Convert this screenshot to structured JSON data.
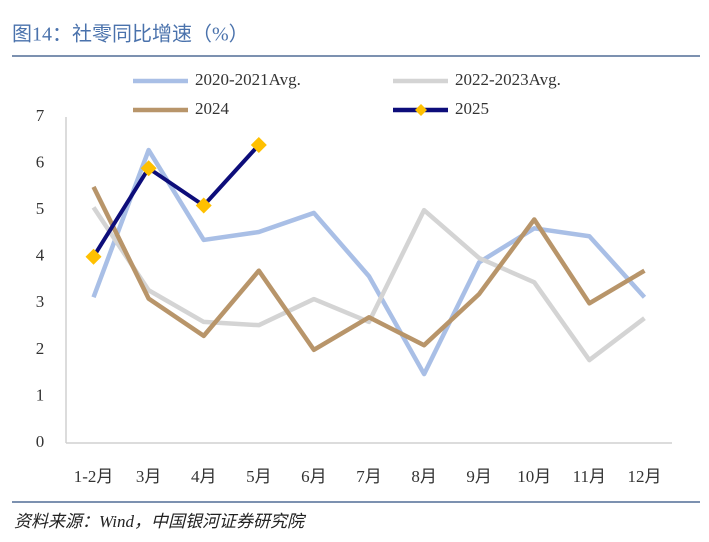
{
  "chart_data": {
    "type": "line",
    "title": "图14：社零同比增速（%）",
    "source": "资料来源：Wind，中国银河证券研究院",
    "categories": [
      "1-2月",
      "3月",
      "4月",
      "5月",
      "6月",
      "7月",
      "8月",
      "9月",
      "10月",
      "11月",
      "12月"
    ],
    "series": [
      {
        "name": "2020-2021Avg.",
        "color": "#a9bfe6",
        "values": [
          3.13,
          6.29,
          4.36,
          4.53,
          4.94,
          3.58,
          1.48,
          3.88,
          4.61,
          4.44,
          3.13
        ]
      },
      {
        "name": "2022-2023Avg.",
        "color": "#d4d4d4",
        "values": [
          5.06,
          3.28,
          2.6,
          2.53,
          3.09,
          2.6,
          5.0,
          3.97,
          3.45,
          1.78,
          2.68
        ]
      },
      {
        "name": "2024",
        "color": "#b8956a",
        "values": [
          5.5,
          3.1,
          2.3,
          3.7,
          2.0,
          2.7,
          2.1,
          3.2,
          4.8,
          3.0,
          3.7
        ]
      },
      {
        "name": "2025",
        "color": "#0d0d7a",
        "marker_color": "#ffc000",
        "values": [
          4.0,
          5.9,
          5.1,
          6.4,
          null,
          null,
          null,
          null,
          null,
          null,
          null
        ]
      }
    ],
    "ylim": [
      0,
      7
    ],
    "yticks": [
      0,
      1,
      2,
      3,
      4,
      5,
      6,
      7
    ],
    "grid": false,
    "legend": "top"
  }
}
